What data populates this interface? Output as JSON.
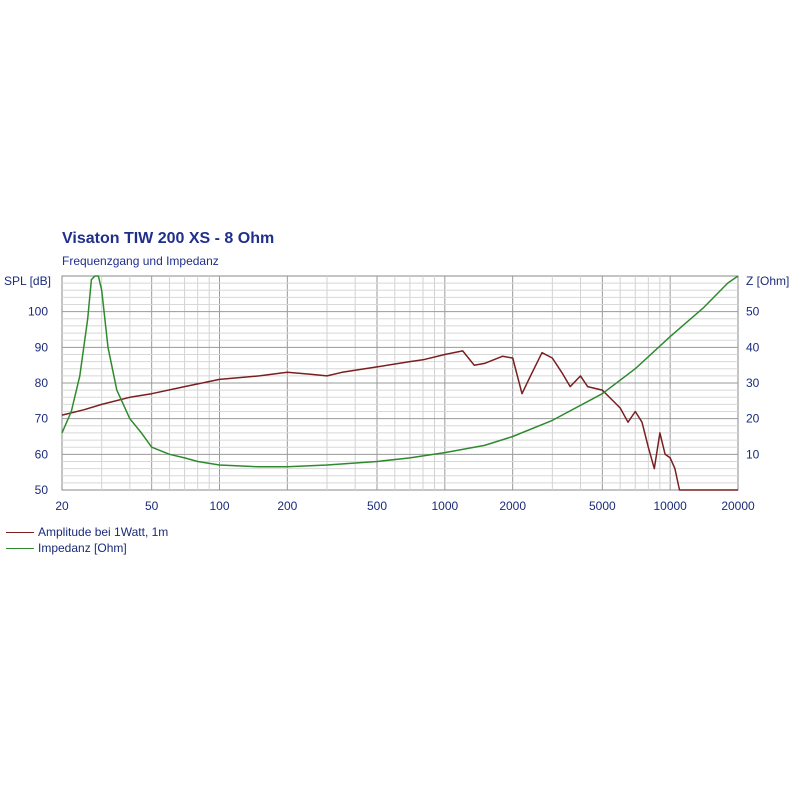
{
  "chart_data": {
    "type": "line",
    "title": "Visaton TIW 200 XS - 8 Ohm",
    "subtitle": "Frequenzgang und Impedanz",
    "y_left_label": "SPL [dB]",
    "y_right_label": "Z [Ohm]",
    "x_scale": "log",
    "xlim": [
      20,
      20000
    ],
    "ylim_left": [
      50,
      110
    ],
    "ylim_right": [
      0,
      60
    ],
    "x_ticks": [
      20,
      50,
      100,
      200,
      500,
      1000,
      2000,
      5000,
      10000,
      20000
    ],
    "x_tick_labels": [
      "20",
      "50",
      "100",
      "200",
      "500",
      "1000",
      "2000",
      "5000",
      "10000",
      "20000"
    ],
    "y_left_ticks": [
      50,
      60,
      70,
      80,
      90,
      100
    ],
    "y_left_tick_labels": [
      "50",
      "60",
      "70",
      "80",
      "90",
      "100"
    ],
    "y_right_ticks": [
      10,
      20,
      30,
      40,
      50
    ],
    "y_right_tick_labels": [
      "10",
      "20",
      "30",
      "40",
      "50"
    ],
    "grid": true,
    "series": [
      {
        "name": "Amplitude bei 1Watt, 1m",
        "color": "#7a1f1f",
        "axis": "left",
        "points": [
          [
            20,
            71
          ],
          [
            25,
            72.5
          ],
          [
            30,
            74
          ],
          [
            40,
            76
          ],
          [
            50,
            77
          ],
          [
            70,
            79
          ],
          [
            100,
            81
          ],
          [
            150,
            82
          ],
          [
            200,
            83
          ],
          [
            250,
            82.5
          ],
          [
            300,
            82
          ],
          [
            350,
            83
          ],
          [
            500,
            84.5
          ],
          [
            700,
            86
          ],
          [
            800,
            86.5
          ],
          [
            1000,
            88
          ],
          [
            1200,
            89
          ],
          [
            1350,
            85
          ],
          [
            1500,
            85.5
          ],
          [
            1800,
            87.5
          ],
          [
            2000,
            87
          ],
          [
            2200,
            77
          ],
          [
            2400,
            82
          ],
          [
            2700,
            88.5
          ],
          [
            3000,
            87
          ],
          [
            3300,
            83
          ],
          [
            3600,
            79
          ],
          [
            4000,
            82
          ],
          [
            4300,
            79
          ],
          [
            5000,
            78
          ],
          [
            6000,
            73
          ],
          [
            6500,
            69
          ],
          [
            7000,
            72
          ],
          [
            7500,
            69
          ],
          [
            8000,
            62
          ],
          [
            8500,
            56
          ],
          [
            9000,
            66
          ],
          [
            9500,
            60
          ],
          [
            10000,
            59
          ],
          [
            10500,
            56
          ],
          [
            11000,
            50
          ],
          [
            20000,
            50
          ]
        ]
      },
      {
        "name": "Impedanz [Ohm]",
        "color": "#2f8a2f",
        "axis": "right",
        "points": [
          [
            20,
            16
          ],
          [
            22,
            22
          ],
          [
            24,
            32
          ],
          [
            26,
            48
          ],
          [
            27,
            59
          ],
          [
            28,
            60
          ],
          [
            29,
            60
          ],
          [
            30,
            56
          ],
          [
            32,
            40
          ],
          [
            35,
            28
          ],
          [
            40,
            20
          ],
          [
            45,
            16
          ],
          [
            50,
            12
          ],
          [
            60,
            10
          ],
          [
            70,
            9
          ],
          [
            80,
            8
          ],
          [
            100,
            7
          ],
          [
            150,
            6.5
          ],
          [
            200,
            6.5
          ],
          [
            300,
            7
          ],
          [
            500,
            8
          ],
          [
            700,
            9
          ],
          [
            1000,
            10.5
          ],
          [
            1500,
            12.5
          ],
          [
            2000,
            15
          ],
          [
            3000,
            19.5
          ],
          [
            5000,
            27
          ],
          [
            7000,
            34
          ],
          [
            10000,
            43
          ],
          [
            14000,
            51
          ],
          [
            18000,
            58
          ],
          [
            20000,
            60
          ]
        ]
      }
    ]
  }
}
